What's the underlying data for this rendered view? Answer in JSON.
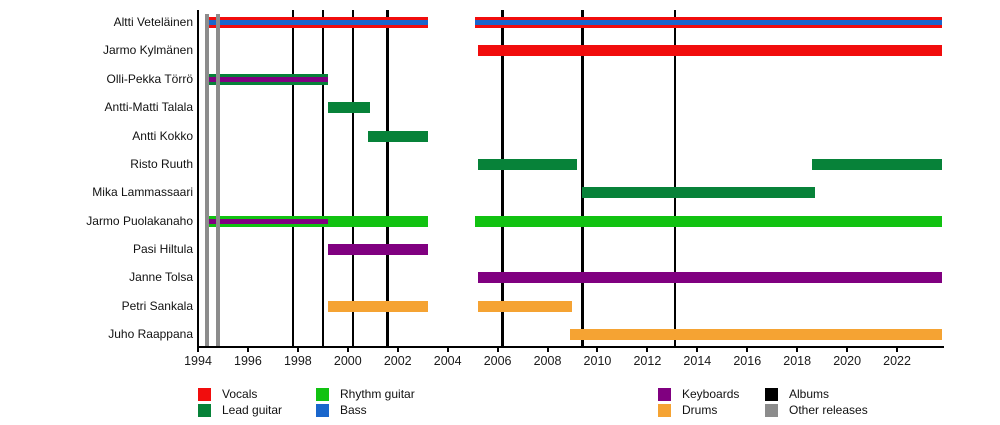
{
  "chart_data": {
    "type": "timeline",
    "description": "Band members timeline (gantt-style) with release markers",
    "x_axis": {
      "start": 1994,
      "end": 2023.8,
      "ticks": [
        1994,
        1996,
        1998,
        2000,
        2002,
        2004,
        2006,
        2008,
        2010,
        2012,
        2014,
        2016,
        2018,
        2020,
        2022
      ]
    },
    "colors": {
      "vocals": "#f10d0d",
      "lead_guitar": "#078239",
      "rhythm_guitar": "#11c211",
      "bass": "#1a66cc",
      "keyboards": "#800080",
      "drums": "#f5a333",
      "albums": "#000000",
      "other_releases": "#8c8c8c"
    },
    "legend": [
      {
        "label": "Vocals",
        "color_key": "vocals"
      },
      {
        "label": "Lead guitar",
        "color_key": "lead_guitar"
      },
      {
        "label": "Rhythm guitar",
        "color_key": "rhythm_guitar"
      },
      {
        "label": "Bass",
        "color_key": "bass"
      },
      {
        "label": "Keyboards",
        "color_key": "keyboards"
      },
      {
        "label": "Drums",
        "color_key": "drums"
      },
      {
        "label": "Albums",
        "color_key": "albums"
      },
      {
        "label": "Other releases",
        "color_key": "other_releases"
      }
    ],
    "members": [
      {
        "name": "Altti Veteläinen",
        "bars": [
          {
            "role": "vocals",
            "start": 1994.4,
            "end": 2003.2
          },
          {
            "role": "vocals",
            "start": 2005.1,
            "end": 2023.8
          }
        ],
        "stripes": [
          {
            "role": "bass",
            "start": 1994.4,
            "end": 2003.2
          },
          {
            "role": "bass",
            "start": 2005.1,
            "end": 2023.8
          }
        ]
      },
      {
        "name": "Jarmo Kylmänen",
        "bars": [
          {
            "role": "vocals",
            "start": 2005.2,
            "end": 2023.8
          }
        ],
        "stripes": []
      },
      {
        "name": "Olli-Pekka Törrö",
        "bars": [
          {
            "role": "lead_guitar",
            "start": 1994.4,
            "end": 1999.2
          }
        ],
        "stripes": [
          {
            "role": "keyboards",
            "start": 1994.4,
            "end": 1999.2
          }
        ]
      },
      {
        "name": "Antti-Matti Talala",
        "bars": [
          {
            "role": "lead_guitar",
            "start": 1999.2,
            "end": 2000.9
          }
        ],
        "stripes": []
      },
      {
        "name": "Antti Kokko",
        "bars": [
          {
            "role": "lead_guitar",
            "start": 2000.8,
            "end": 2003.2
          }
        ],
        "stripes": []
      },
      {
        "name": "Risto Ruuth",
        "bars": [
          {
            "role": "lead_guitar",
            "start": 2005.2,
            "end": 2009.2
          },
          {
            "role": "lead_guitar",
            "start": 2018.6,
            "end": 2023.8
          }
        ],
        "stripes": []
      },
      {
        "name": "Mika Lammassaari",
        "bars": [
          {
            "role": "lead_guitar",
            "start": 2009.4,
            "end": 2018.7
          }
        ],
        "stripes": []
      },
      {
        "name": "Jarmo Puolakanaho",
        "bars": [
          {
            "role": "rhythm_guitar",
            "start": 1994.4,
            "end": 2003.2
          },
          {
            "role": "rhythm_guitar",
            "start": 2005.1,
            "end": 2023.8
          }
        ],
        "stripes": [
          {
            "role": "keyboards",
            "start": 1994.4,
            "end": 1999.2
          }
        ]
      },
      {
        "name": "Pasi Hiltula",
        "bars": [
          {
            "role": "keyboards",
            "start": 1999.2,
            "end": 2003.2
          }
        ],
        "stripes": []
      },
      {
        "name": "Janne Tolsa",
        "bars": [
          {
            "role": "keyboards",
            "start": 2005.2,
            "end": 2023.8
          }
        ],
        "stripes": []
      },
      {
        "name": "Petri Sankala",
        "bars": [
          {
            "role": "drums",
            "start": 1999.2,
            "end": 2003.2
          },
          {
            "role": "drums",
            "start": 2005.2,
            "end": 2009.0
          }
        ],
        "stripes": []
      },
      {
        "name": "Juho Raappana",
        "bars": [
          {
            "role": "drums",
            "start": 2008.9,
            "end": 2023.8
          }
        ],
        "stripes": []
      }
    ],
    "album_lines": [
      1997.8,
      1999.0,
      2000.2,
      2001.6,
      2006.2,
      2009.4,
      2013.1
    ],
    "other_release_lines": [
      1994.35,
      1994.8
    ]
  }
}
